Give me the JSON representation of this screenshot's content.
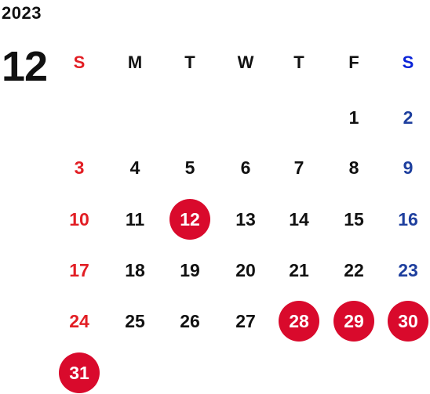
{
  "year": "2023",
  "month": "12",
  "weekday_labels": [
    "S",
    "M",
    "T",
    "W",
    "T",
    "F",
    "S"
  ],
  "colors": {
    "sunday": "#e21e24",
    "saturday": "#1e3f9e",
    "saturday_header": "#0a23d8",
    "highlight": "#d90a2c"
  },
  "weeks": [
    [
      null,
      null,
      null,
      null,
      null,
      "1",
      "2"
    ],
    [
      "3",
      "4",
      "5",
      "6",
      "7",
      "8",
      "9"
    ],
    [
      "10",
      "11",
      "12",
      "13",
      "14",
      "15",
      "16"
    ],
    [
      "17",
      "18",
      "19",
      "20",
      "21",
      "22",
      "23"
    ],
    [
      "24",
      "25",
      "26",
      "27",
      "28",
      "29",
      "30"
    ],
    [
      "31",
      null,
      null,
      null,
      null,
      null,
      null
    ]
  ],
  "highlighted_days": [
    "12",
    "28",
    "29",
    "30",
    "31"
  ]
}
